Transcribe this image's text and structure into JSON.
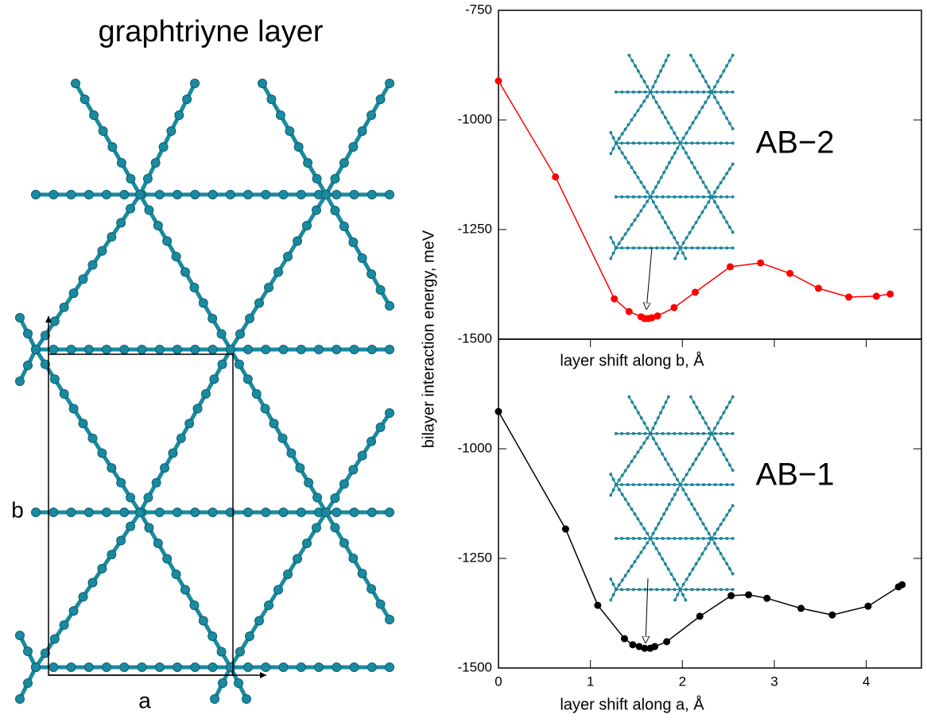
{
  "structure": {
    "title": "graphtriyne layer",
    "axis_a": "a",
    "axis_b": "b"
  },
  "chart_data": [
    {
      "type": "line",
      "xlabel": "layer shift along b, Å",
      "ylabel": "bilayer interaction energy, meV",
      "annotation": "AB−2",
      "xlim": [
        0,
        4.6
      ],
      "ylim": [
        -1500,
        -750
      ],
      "yticks": [
        -1500,
        -1250,
        -1000,
        -750
      ],
      "series": [
        {
          "name": "AB-2",
          "color": "#ff0000",
          "x": [
            0,
            0.62,
            1.26,
            1.42,
            1.55,
            1.59,
            1.63,
            1.67,
            1.73,
            1.91,
            2.14,
            2.52,
            2.85,
            3.17,
            3.48,
            3.81,
            4.11,
            4.26
          ],
          "values": [
            -911,
            -1130,
            -1408,
            -1437,
            -1449,
            -1453,
            -1453,
            -1451,
            -1447,
            -1428,
            -1393,
            -1335,
            -1326,
            -1350,
            -1384,
            -1404,
            -1402,
            -1397
          ]
        }
      ]
    },
    {
      "type": "line",
      "xlabel": "layer shift along a, Å",
      "annotation": "AB−1",
      "xlim": [
        0,
        4.6
      ],
      "ylim": [
        -1500,
        -750
      ],
      "xticks": [
        0,
        1,
        2,
        3,
        4
      ],
      "yticks": [
        -1500,
        -1250,
        -1000
      ],
      "series": [
        {
          "name": "AB-1",
          "color": "#000000",
          "x": [
            0,
            0.73,
            1.08,
            1.37,
            1.46,
            1.53,
            1.59,
            1.65,
            1.7,
            1.83,
            2.19,
            2.53,
            2.72,
            2.92,
            3.29,
            3.63,
            4.02,
            4.35,
            4.39
          ],
          "values": [
            -915,
            -1183,
            -1357,
            -1433,
            -1447,
            -1451,
            -1455,
            -1455,
            -1451,
            -1440,
            -1382,
            -1335,
            -1333,
            -1341,
            -1364,
            -1379,
            -1359,
            -1315,
            -1310
          ]
        }
      ]
    }
  ]
}
